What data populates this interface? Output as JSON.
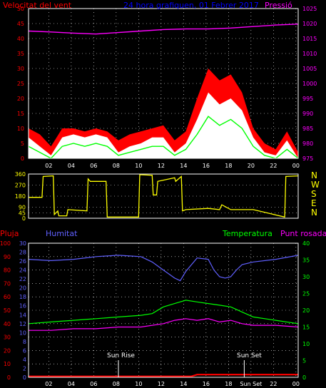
{
  "header": {
    "left_label": "Velocitat del vent",
    "title": "24 hora grafiquen, 01 Febrer 2017",
    "right_label": "Pressió"
  },
  "panel2": {
    "dir_labels": [
      "N",
      "W",
      "S",
      "E",
      "N"
    ]
  },
  "panel3": {
    "label_rain": "Pluja",
    "label_humidity": "Humitat",
    "label_temp": "Temperatura",
    "label_dew": "Punt rosada",
    "sunrise_label": "Sun Rise",
    "sunset_label": "Sun Set",
    "sunset_axis_label": "Sun Set"
  },
  "colors": {
    "background": "#000000",
    "frame": "#ffffff",
    "grid": "#ffffff",
    "wind_speed": "#ff0000",
    "wind_avg": "#00ff00",
    "wind_gust_fill": "#ffffff",
    "pressure": "#ff00ff",
    "wind_dir": "#ffff00",
    "humidity": "#6060ff",
    "temperature": "#00ff00",
    "dew_point": "#ff00ff",
    "rain": "#ff0000",
    "axis_left": "#ff0000",
    "axis_mid": "#6060ff",
    "axis_right_pressure": "#ff00ff",
    "axis_right_temp": "#00ff00",
    "title": "#0000ff"
  },
  "chart_data": [
    {
      "type": "line",
      "title": "24 hora grafiquen, 01 Febrer 2017",
      "xlabel": "",
      "ylabel": "Velocitat del vent",
      "y2label": "Pressió",
      "x_ticks": [
        "02",
        "04",
        "06",
        "08",
        "10",
        "12",
        "14",
        "16",
        "18",
        "20",
        "22",
        "00"
      ],
      "ylim": [
        0,
        50
      ],
      "y_ticks": [
        0,
        5,
        10,
        15,
        20,
        25,
        30,
        35,
        40,
        45,
        50
      ],
      "y2lim": [
        975,
        1025
      ],
      "y2_ticks": [
        975,
        980,
        985,
        990,
        995,
        1000,
        1005,
        1010,
        1015,
        1020,
        1025
      ],
      "grid": true,
      "series": [
        {
          "name": "Velocitat del vent",
          "x": [
            0,
            1,
            2,
            3,
            4,
            5,
            6,
            7,
            8,
            9,
            10,
            11,
            12,
            13,
            14,
            15,
            16,
            17,
            18,
            19,
            20,
            21,
            22,
            23,
            24
          ],
          "values": [
            7,
            4,
            1,
            7,
            8,
            7,
            8,
            7,
            2,
            4,
            5,
            7,
            7,
            2,
            5,
            13,
            22,
            18,
            20,
            16,
            7,
            2,
            1,
            6,
            0
          ]
        },
        {
          "name": "Ràfega",
          "x": [
            0,
            1,
            2,
            3,
            4,
            5,
            6,
            7,
            8,
            9,
            10,
            11,
            12,
            13,
            14,
            15,
            16,
            17,
            18,
            19,
            20,
            21,
            22,
            23,
            24
          ],
          "values": [
            10,
            8,
            4,
            10,
            10,
            9,
            10,
            9,
            6,
            8,
            9,
            10,
            11,
            6,
            9,
            20,
            30,
            26,
            28,
            22,
            10,
            5,
            3,
            9,
            2
          ]
        },
        {
          "name": "Mitjana",
          "x": [
            0,
            1,
            2,
            3,
            4,
            5,
            6,
            7,
            8,
            9,
            10,
            11,
            12,
            13,
            14,
            15,
            16,
            17,
            18,
            19,
            20,
            21,
            22,
            23,
            24
          ],
          "values": [
            4,
            2,
            0,
            4,
            5,
            4,
            5,
            4,
            1,
            2,
            3,
            4,
            4,
            1,
            3,
            8,
            14,
            11,
            13,
            10,
            4,
            1,
            0,
            3,
            0
          ]
        },
        {
          "name": "Pressió",
          "axis": "right",
          "x": [
            0,
            2,
            4,
            6,
            8,
            10,
            12,
            14,
            16,
            18,
            20,
            22,
            24
          ],
          "values": [
            1017.5,
            1017.2,
            1016.8,
            1016.5,
            1017,
            1017.5,
            1018,
            1018.2,
            1018.2,
            1018.5,
            1019,
            1019.5,
            1019.8
          ]
        }
      ]
    },
    {
      "type": "line",
      "ylabel": "",
      "ylim": [
        0,
        360
      ],
      "y_ticks": [
        0,
        45,
        90,
        180,
        270,
        360
      ],
      "right_labels": [
        "N",
        "W",
        "S",
        "E",
        "N"
      ],
      "x_ticks": [],
      "series": [
        {
          "name": "Direcció del vent",
          "x": [
            0,
            1.2,
            1.3,
            2.2,
            2.3,
            2.6,
            2.7,
            3.4,
            3.5,
            5.2,
            5.3,
            5.4,
            5.5,
            6.9,
            7.0,
            9.8,
            9.9,
            11.0,
            11.1,
            11.4,
            11.5,
            13.0,
            13.1,
            13.6,
            13.7,
            14.0,
            16.0,
            17.0,
            17.2,
            18.0,
            18.2,
            19.0,
            20.0,
            22.8,
            22.9,
            24.0
          ],
          "values": [
            170,
            170,
            340,
            345,
            30,
            60,
            20,
            20,
            70,
            60,
            320,
            310,
            300,
            300,
            10,
            10,
            355,
            350,
            190,
            190,
            300,
            330,
            300,
            340,
            60,
            70,
            80,
            70,
            110,
            70,
            70,
            70,
            70,
            10,
            340,
            345
          ]
        }
      ]
    },
    {
      "type": "line",
      "ylabel": "Pluja",
      "ylim": [
        0,
        100
      ],
      "y_ticks": [
        0,
        10,
        20,
        30,
        40,
        50,
        60,
        70,
        80,
        90,
        100
      ],
      "y_mid_ticks": [
        0,
        2,
        4,
        6,
        8,
        10,
        12,
        14,
        16,
        18,
        20,
        22,
        24,
        26,
        28,
        30
      ],
      "y2lim": [
        0,
        40
      ],
      "y2_ticks": [
        0,
        5,
        10,
        15,
        20,
        25,
        30,
        35,
        40
      ],
      "x_ticks": [
        "02",
        "04",
        "06",
        "08",
        "10",
        "12",
        "14",
        "16",
        "18",
        "Sun Set",
        "22",
        "00"
      ],
      "grid": true,
      "series": [
        {
          "name": "Humitat",
          "x": [
            0,
            2,
            4,
            6,
            8,
            10,
            11,
            12,
            13,
            13.5,
            14,
            15,
            16,
            16.5,
            17,
            17.5,
            18,
            18.5,
            19,
            20,
            22,
            24
          ],
          "values": [
            88,
            87,
            88,
            90,
            91,
            90,
            86,
            80,
            74,
            72,
            79,
            89,
            88,
            80,
            75,
            74,
            75,
            80,
            84,
            86,
            88,
            91
          ]
        },
        {
          "name": "Temperatura",
          "x": [
            0,
            2,
            4,
            6,
            8,
            10,
            11,
            12,
            13,
            14,
            15,
            16,
            17,
            18,
            19,
            20,
            22,
            24
          ],
          "values": [
            16,
            16.5,
            17,
            17.5,
            18,
            18.5,
            19,
            21,
            22,
            23,
            22.5,
            22,
            21.5,
            21,
            19.5,
            18,
            17,
            16
          ]
        },
        {
          "name": "Punt rosada",
          "x": [
            0,
            2,
            4,
            6,
            8,
            10,
            12,
            13,
            14,
            15,
            16,
            17,
            18,
            19,
            20,
            22,
            24
          ],
          "values": [
            14,
            14,
            14.5,
            14.5,
            15,
            15,
            16,
            17,
            17.5,
            17,
            17.5,
            16.5,
            17,
            16,
            15.5,
            15.5,
            15
          ]
        },
        {
          "name": "Pluja",
          "x": [
            0,
            14.5,
            15,
            24
          ],
          "values": [
            0.2,
            0.2,
            0.6,
            0.6
          ]
        }
      ],
      "annotations": [
        {
          "text": "Sun Rise",
          "x": 8.0
        },
        {
          "text": "Sun Set",
          "x": 19.2
        }
      ]
    }
  ]
}
